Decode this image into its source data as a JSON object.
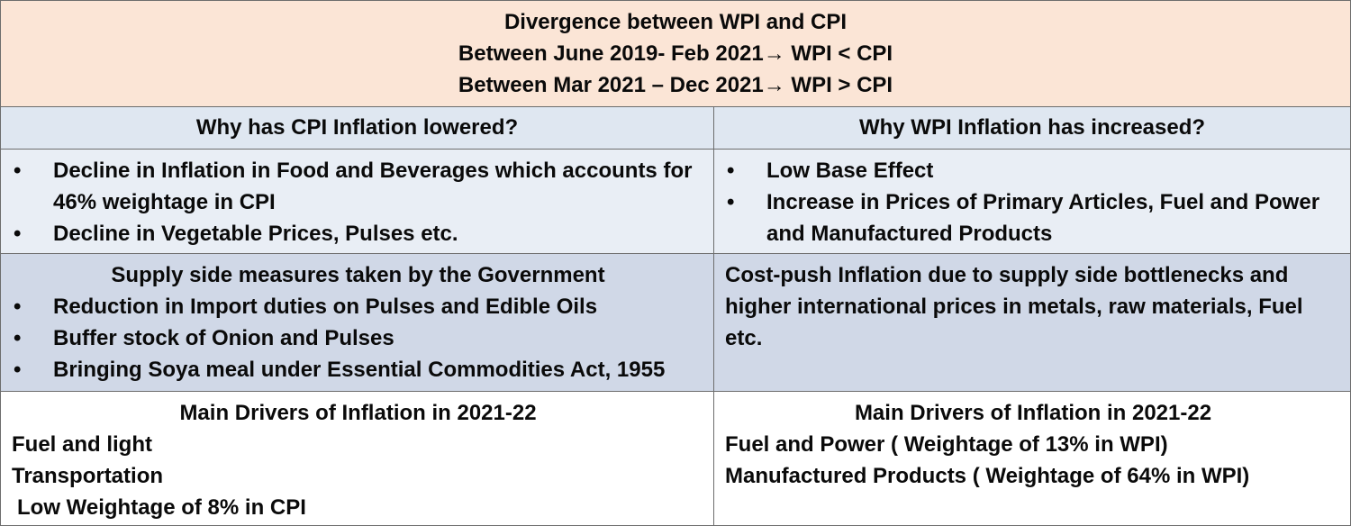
{
  "title": {
    "line1": "Divergence between WPI and CPI",
    "line2": "Between June 2019- Feb 2021→ WPI < CPI",
    "line3": "Between Mar 2021 – Dec 2021→ WPI > CPI"
  },
  "left": {
    "header": "Why has CPI Inflation lowered?",
    "reasons": [
      "Decline in Inflation in Food and Beverages which accounts for 46% weightage in CPI",
      "Decline in Vegetable Prices, Pulses etc."
    ],
    "measures_heading": "Supply side measures taken by the Government",
    "measures": [
      "Reduction in Import duties on Pulses and Edible Oils",
      "Buffer stock of Onion and Pulses",
      "Bringing Soya meal under Essential Commodities Act, 1955"
    ],
    "drivers_heading": "Main Drivers of Inflation in 2021-22",
    "drivers": [
      "Fuel and light",
      "Transportation"
    ],
    "drivers_note": "Low Weightage of 8% in CPI"
  },
  "right": {
    "header": "Why WPI Inflation has increased?",
    "reasons": [
      "Low Base Effect",
      "Increase in Prices of Primary Articles, Fuel and Power and Manufactured Products"
    ],
    "costpush": "Cost-push Inflation due to supply side bottlenecks and higher international prices in metals, raw materials, Fuel etc.",
    "drivers_heading": "Main Drivers of Inflation in 2021-22",
    "drivers": [
      "Fuel and Power ( Weightage of 13% in WPI)",
      "Manufactured Products ( Weightage of 64% in WPI)"
    ]
  }
}
